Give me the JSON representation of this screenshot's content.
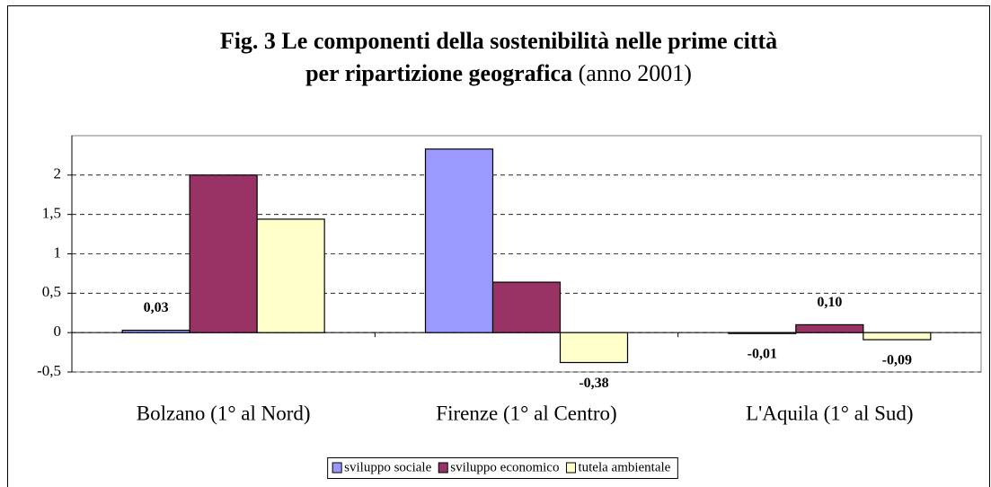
{
  "chart_data": {
    "type": "bar",
    "title": [
      "Fig. 3 Le componenti della sostenibilità nelle prime città",
      "per ripartizione geografica"
    ],
    "subtitle": "(anno 2001)",
    "categories": [
      "Bolzano (1° al Nord)",
      "Firenze (1° al Centro)",
      "L'Aquila (1° al Sud)"
    ],
    "series": [
      {
        "name": "sviluppo sociale",
        "color": "#9999ff",
        "values": [
          0.03,
          2.33,
          -0.01
        ],
        "value_labels": [
          "0,03",
          null,
          "-0,01"
        ]
      },
      {
        "name": "sviluppo economico",
        "color": "#993366",
        "values": [
          2.0,
          0.64,
          0.1
        ],
        "value_labels": [
          null,
          null,
          "0,10"
        ]
      },
      {
        "name": "tutela ambientale",
        "color": "#ffffcc",
        "values": [
          1.44,
          -0.38,
          -0.09
        ],
        "value_labels": [
          null,
          "-0,38",
          "-0,09"
        ]
      }
    ],
    "ylim": [
      -0.5,
      2.5
    ],
    "yticks": [
      {
        "value": -0.5,
        "label": "-0,5"
      },
      0,
      {
        "value": 0.5,
        "label": "0,5"
      },
      1,
      {
        "value": 1.5,
        "label": "1,5"
      },
      2
    ],
    "grid": true,
    "legend": "bottom"
  }
}
